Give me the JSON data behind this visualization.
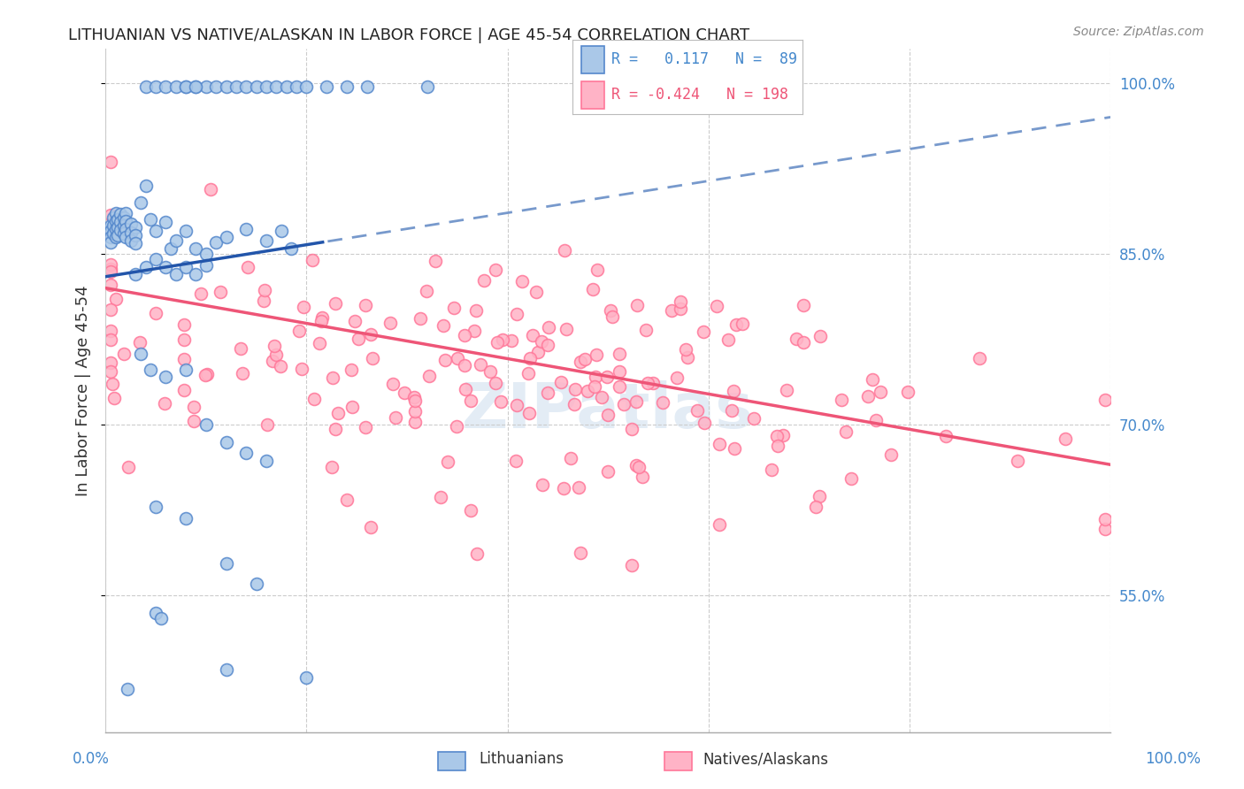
{
  "title": "LITHUANIAN VS NATIVE/ALASKAN IN LABOR FORCE | AGE 45-54 CORRELATION CHART",
  "source": "Source: ZipAtlas.com",
  "ylabel": "In Labor Force | Age 45-54",
  "right_yticks": [
    0.55,
    0.7,
    0.85,
    1.0
  ],
  "right_yticklabels": [
    "55.0%",
    "70.0%",
    "85.0%",
    "100.0%"
  ],
  "xlim": [
    0,
    1
  ],
  "ylim": [
    0.43,
    1.03
  ],
  "blue_color_face": "#aac8e8",
  "blue_color_edge": "#5588cc",
  "pink_color_face": "#ffb3c6",
  "pink_color_edge": "#ff7799",
  "blue_line_color": "#2255aa",
  "pink_line_color": "#ee5577",
  "blue_r": 0.117,
  "blue_n": 89,
  "pink_r": -0.424,
  "pink_n": 198,
  "legend_blue_text": "R =   0.117   N =  89",
  "legend_pink_text": "R = -0.424   N = 198",
  "watermark": "ZIPatlas",
  "grid_color": "#cccccc",
  "title_color": "#222222",
  "right_axis_color": "#4488cc",
  "marker_size": 100
}
